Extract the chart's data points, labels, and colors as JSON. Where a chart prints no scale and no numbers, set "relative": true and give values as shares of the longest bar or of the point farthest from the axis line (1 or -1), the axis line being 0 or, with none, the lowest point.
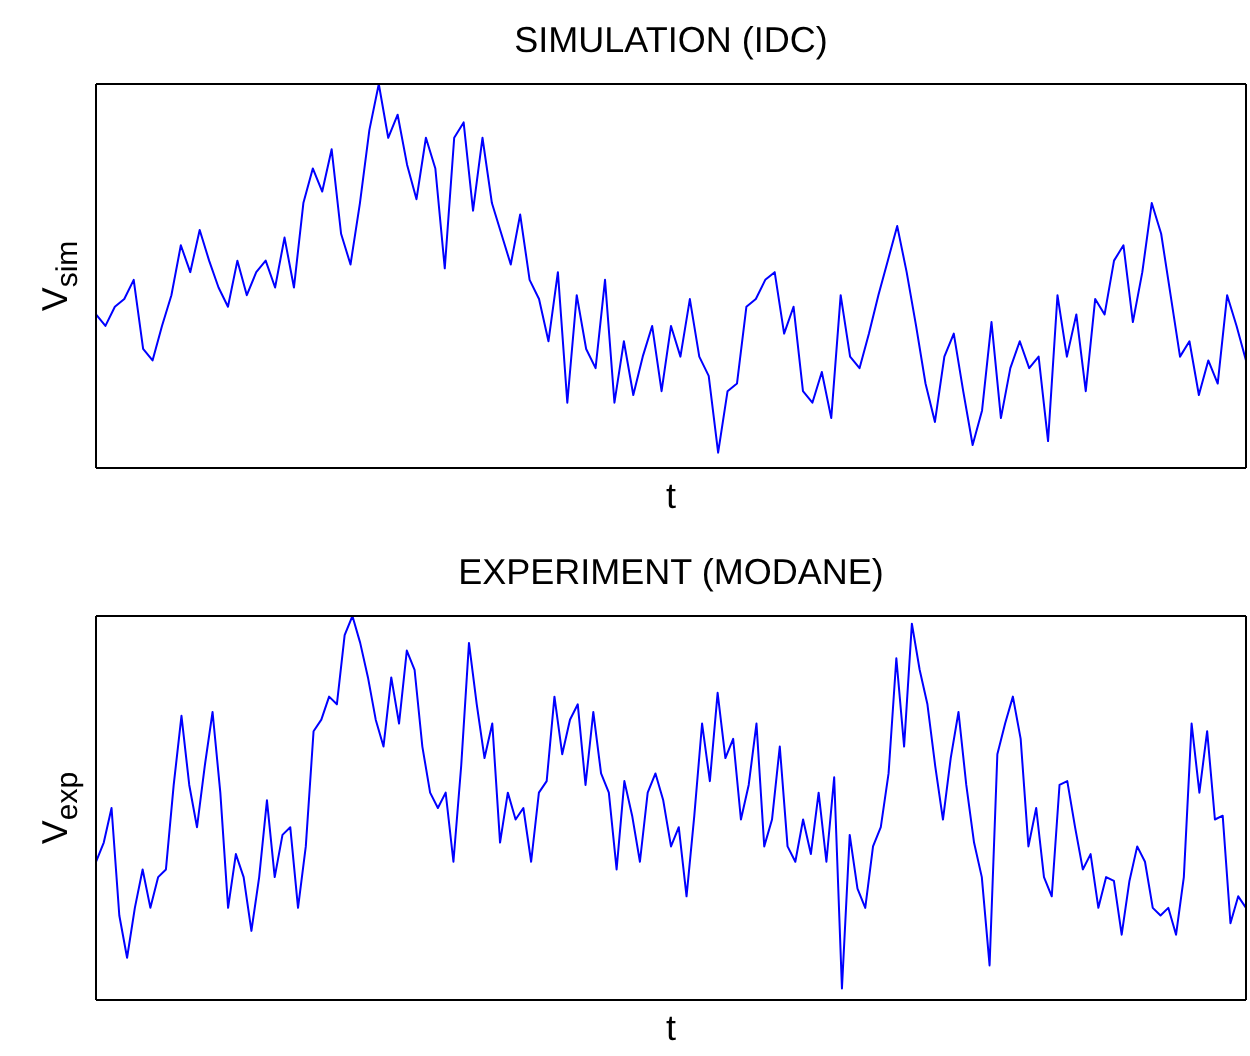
{
  "chart_data": [
    {
      "type": "line",
      "title": "SIMULATION (IDC)",
      "xlabel": "t",
      "ylabel": "V$_{sim}$",
      "relative": true,
      "categories": [
        null,
        null,
        null,
        null,
        null,
        null,
        null,
        null,
        null,
        null,
        null,
        null,
        null,
        null,
        null,
        null,
        null,
        null,
        null,
        null,
        null,
        null,
        null,
        null,
        null,
        null,
        null,
        null,
        null,
        null,
        null,
        null,
        null,
        null,
        null,
        null,
        null,
        null,
        null,
        null,
        null,
        null,
        null,
        null,
        null,
        null,
        null,
        null,
        null,
        null,
        null,
        null,
        null,
        null,
        null,
        null,
        null,
        null,
        null,
        null,
        null,
        null,
        null,
        null,
        null,
        null,
        null,
        null,
        null,
        null,
        null,
        null,
        null,
        null,
        null,
        null,
        null,
        null,
        null,
        null,
        null,
        null,
        null,
        null,
        null,
        null,
        null,
        null,
        null,
        null,
        null,
        null,
        null,
        null,
        null,
        null,
        null,
        null,
        null,
        null,
        null,
        null,
        null,
        null,
        null,
        null,
        null,
        null,
        null,
        null,
        null,
        null,
        null,
        null,
        null,
        null,
        null,
        null,
        null,
        null,
        null,
        null,
        null
      ],
      "series": [
        {
          "color": "#0000ff",
          "values": [
            0.4,
            0.37,
            0.42,
            0.44,
            0.49,
            0.31,
            0.28,
            0.37,
            0.45,
            0.58,
            0.51,
            0.62,
            0.54,
            0.47,
            0.42,
            0.54,
            0.45,
            0.51,
            0.54,
            0.47,
            0.6,
            0.47,
            0.69,
            0.78,
            0.72,
            0.83,
            0.61,
            0.53,
            0.69,
            0.88,
            1.0,
            0.86,
            0.92,
            0.79,
            0.7,
            0.86,
            0.78,
            0.52,
            0.86,
            0.9,
            0.67,
            0.86,
            0.69,
            0.61,
            0.53,
            0.66,
            0.49,
            0.44,
            0.33,
            0.51,
            0.17,
            0.45,
            0.31,
            0.26,
            0.49,
            0.17,
            0.33,
            0.19,
            0.29,
            0.37,
            0.2,
            0.37,
            0.29,
            0.44,
            0.29,
            0.24,
            0.04,
            0.2,
            0.22,
            0.42,
            0.44,
            0.49,
            0.51,
            0.35,
            0.42,
            0.2,
            0.17,
            0.25,
            0.13,
            0.45,
            0.29,
            0.26,
            0.35,
            0.45,
            0.54,
            0.63,
            0.51,
            0.37,
            0.22,
            0.12,
            0.29,
            0.35,
            0.2,
            0.06,
            0.15,
            0.38,
            0.13,
            0.26,
            0.33,
            0.26,
            0.29,
            0.07,
            0.45,
            0.29,
            0.4,
            0.2,
            0.44,
            0.4,
            0.54,
            0.58,
            0.38,
            0.51,
            0.69,
            0.61,
            0.45,
            0.29,
            0.33,
            0.19,
            0.28,
            0.22,
            0.45,
            0.37,
            0.28
          ]
        }
      ]
    },
    {
      "type": "line",
      "title": "EXPERIMENT (MODANE)",
      "xlabel": "t",
      "ylabel": "V$_{exp}$",
      "relative": true,
      "categories": [
        null,
        null,
        null,
        null,
        null,
        null,
        null,
        null,
        null,
        null,
        null,
        null,
        null,
        null,
        null,
        null,
        null,
        null,
        null,
        null,
        null,
        null,
        null,
        null,
        null,
        null,
        null,
        null,
        null,
        null,
        null,
        null,
        null,
        null,
        null,
        null,
        null,
        null,
        null,
        null,
        null,
        null,
        null,
        null,
        null,
        null,
        null,
        null,
        null,
        null,
        null,
        null,
        null,
        null,
        null,
        null,
        null,
        null,
        null,
        null,
        null,
        null,
        null,
        null,
        null,
        null,
        null,
        null,
        null,
        null,
        null,
        null,
        null,
        null,
        null,
        null,
        null,
        null,
        null,
        null,
        null,
        null,
        null,
        null,
        null,
        null,
        null,
        null,
        null,
        null,
        null,
        null,
        null,
        null,
        null,
        null,
        null,
        null,
        null,
        null,
        null,
        null,
        null,
        null,
        null,
        null,
        null,
        null,
        null,
        null,
        null,
        null,
        null,
        null,
        null,
        null,
        null,
        null,
        null,
        null,
        null,
        null,
        null,
        null,
        null,
        null,
        null,
        null,
        null,
        null,
        null,
        null,
        null,
        null,
        null,
        null,
        null,
        null,
        null,
        null,
        null,
        null,
        null,
        null,
        null,
        null,
        null,
        null,
        null
      ],
      "series": [
        {
          "color": "#0000ff",
          "values": [
            0.36,
            0.41,
            0.5,
            0.22,
            0.11,
            0.24,
            0.34,
            0.24,
            0.32,
            0.34,
            0.56,
            0.74,
            0.56,
            0.45,
            0.61,
            0.75,
            0.54,
            0.24,
            0.38,
            0.32,
            0.18,
            0.32,
            0.52,
            0.32,
            0.43,
            0.45,
            0.24,
            0.4,
            0.7,
            0.73,
            0.79,
            0.77,
            0.95,
            1.0,
            0.93,
            0.84,
            0.73,
            0.66,
            0.84,
            0.72,
            0.91,
            0.86,
            0.66,
            0.54,
            0.5,
            0.54,
            0.36,
            0.61,
            0.93,
            0.77,
            0.63,
            0.72,
            0.41,
            0.54,
            0.47,
            0.5,
            0.36,
            0.54,
            0.57,
            0.79,
            0.64,
            0.73,
            0.77,
            0.56,
            0.75,
            0.59,
            0.54,
            0.34,
            0.57,
            0.48,
            0.36,
            0.54,
            0.59,
            0.52,
            0.4,
            0.45,
            0.27,
            0.48,
            0.72,
            0.57,
            0.8,
            0.63,
            0.68,
            0.47,
            0.56,
            0.72,
            0.4,
            0.47,
            0.66,
            0.4,
            0.36,
            0.47,
            0.38,
            0.54,
            0.36,
            0.58,
            0.03,
            0.43,
            0.29,
            0.24,
            0.4,
            0.45,
            0.59,
            0.89,
            0.66,
            0.98,
            0.86,
            0.77,
            0.61,
            0.47,
            0.63,
            0.75,
            0.56,
            0.41,
            0.32,
            0.09,
            0.64,
            0.72,
            0.79,
            0.68,
            0.4,
            0.5,
            0.32,
            0.27,
            0.56,
            0.57,
            0.45,
            0.34,
            0.38,
            0.24,
            0.32,
            0.31,
            0.17,
            0.31,
            0.4,
            0.36,
            0.24,
            0.22,
            0.24,
            0.17,
            0.32,
            0.72,
            0.54,
            0.7,
            0.47,
            0.48,
            0.2,
            0.27,
            0.24
          ]
        }
      ]
    }
  ]
}
